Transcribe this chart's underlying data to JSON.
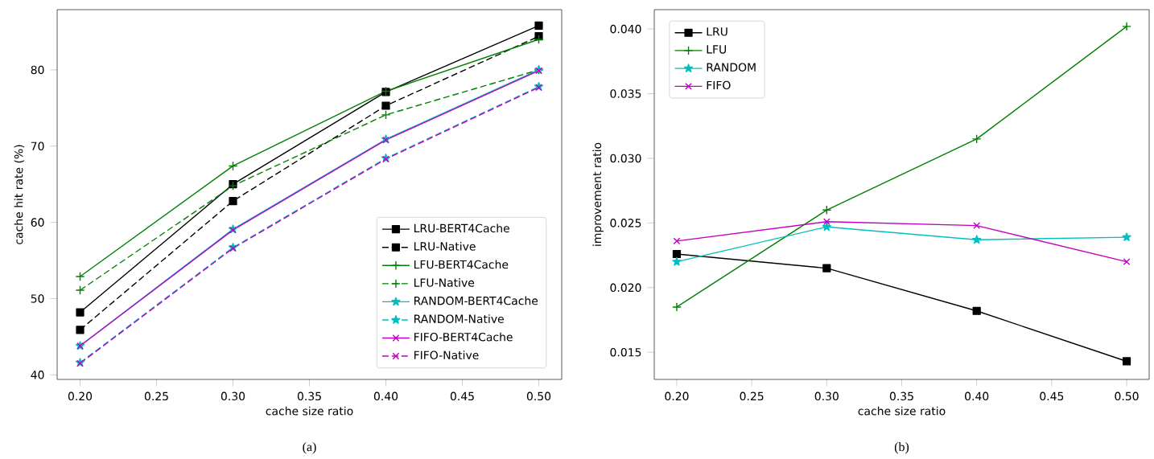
{
  "chart_data": [
    {
      "type": "line",
      "xlabel": "cache size ratio",
      "ylabel": "cache hit rate (%)",
      "annotations": [
        "(a)"
      ],
      "x": [
        0.2,
        0.3,
        0.4,
        0.5
      ],
      "xlim": [
        0.185,
        0.515
      ],
      "ylim": [
        39.4,
        87.9
      ],
      "xticks": [
        {
          "value": 0.2,
          "label": "0.20"
        },
        {
          "value": 0.25,
          "label": "0.25"
        },
        {
          "value": 0.3,
          "label": "0.30"
        },
        {
          "value": 0.35,
          "label": "0.35"
        },
        {
          "value": 0.4,
          "label": "0.40"
        },
        {
          "value": 0.45,
          "label": "0.45"
        },
        {
          "value": 0.5,
          "label": "0.50"
        }
      ],
      "yticks": [
        40,
        50,
        60,
        70,
        80
      ],
      "legend": "bottom right",
      "grid": false,
      "series": [
        {
          "name": "LRU-BERT4Cache",
          "color": "#000000",
          "marker": "square",
          "line_style": "solid",
          "values": [
            48.2,
            65.0,
            77.1,
            85.8
          ]
        },
        {
          "name": "LRU-Native",
          "color": "#000000",
          "marker": "square",
          "line_style": "dashed",
          "values": [
            45.9,
            62.8,
            75.3,
            84.4
          ]
        },
        {
          "name": "LFU-BERT4Cache",
          "color": "#008000",
          "marker": "plus",
          "line_style": "solid",
          "values": [
            52.9,
            67.4,
            77.2,
            84.0
          ]
        },
        {
          "name": "LFU-Native",
          "color": "#008000",
          "marker": "plus",
          "line_style": "dashed",
          "values": [
            51.1,
            64.8,
            74.1,
            80.0
          ]
        },
        {
          "name": "RANDOM-BERT4Cache",
          "color": "#00bfbf",
          "marker": "star",
          "line_style": "solid",
          "values": [
            43.8,
            59.1,
            70.9,
            80.0
          ]
        },
        {
          "name": "RANDOM-Native",
          "color": "#00bfbf",
          "marker": "star",
          "line_style": "dashed",
          "values": [
            41.6,
            56.7,
            68.4,
            77.8
          ]
        },
        {
          "name": "FIFO-BERT4Cache",
          "color": "#bf00bf",
          "marker": "cross",
          "line_style": "solid",
          "values": [
            43.8,
            59.0,
            70.8,
            79.9
          ]
        },
        {
          "name": "FIFO-Native",
          "color": "#bf00bf",
          "marker": "cross",
          "line_style": "dashed",
          "values": [
            41.5,
            56.6,
            68.3,
            77.7
          ]
        }
      ]
    },
    {
      "type": "line",
      "xlabel": "cache size ratio",
      "ylabel": "improvement ratio",
      "annotations": [
        "(b)"
      ],
      "x": [
        0.2,
        0.3,
        0.4,
        0.5
      ],
      "xlim": [
        0.185,
        0.515
      ],
      "ylim": [
        0.0129,
        0.0415
      ],
      "xticks": [
        {
          "value": 0.2,
          "label": "0.20"
        },
        {
          "value": 0.25,
          "label": "0.25"
        },
        {
          "value": 0.3,
          "label": "0.30"
        },
        {
          "value": 0.35,
          "label": "0.35"
        },
        {
          "value": 0.4,
          "label": "0.40"
        },
        {
          "value": 0.45,
          "label": "0.45"
        },
        {
          "value": 0.5,
          "label": "0.50"
        }
      ],
      "yticks": [
        {
          "value": 0.015,
          "label": "0.015"
        },
        {
          "value": 0.02,
          "label": "0.020"
        },
        {
          "value": 0.025,
          "label": "0.025"
        },
        {
          "value": 0.03,
          "label": "0.030"
        },
        {
          "value": 0.035,
          "label": "0.035"
        },
        {
          "value": 0.04,
          "label": "0.040"
        }
      ],
      "legend": "top left",
      "grid": false,
      "series": [
        {
          "name": "LRU",
          "color": "#000000",
          "marker": "square",
          "line_style": "solid",
          "values": [
            0.0226,
            0.0215,
            0.0182,
            0.0143
          ]
        },
        {
          "name": "LFU",
          "color": "#008000",
          "marker": "plus",
          "line_style": "solid",
          "values": [
            0.0185,
            0.026,
            0.0315,
            0.0402
          ]
        },
        {
          "name": "RANDOM",
          "color": "#00bfbf",
          "marker": "star",
          "line_style": "solid",
          "values": [
            0.022,
            0.0247,
            0.0237,
            0.0239
          ]
        },
        {
          "name": "FIFO",
          "color": "#bf00bf",
          "marker": "cross",
          "line_style": "solid",
          "values": [
            0.0236,
            0.0251,
            0.0248,
            0.022
          ]
        }
      ]
    }
  ]
}
